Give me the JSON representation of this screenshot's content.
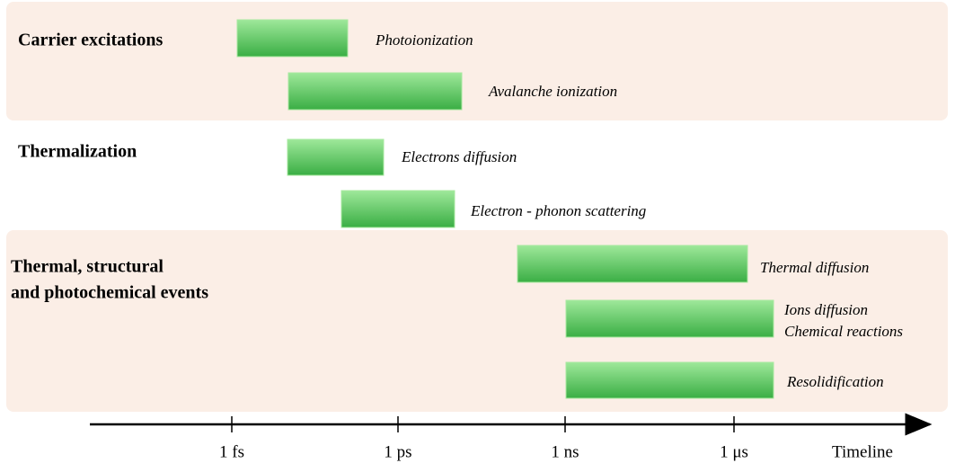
{
  "groups": [
    {
      "label_lines": [
        "Carrier excitations"
      ]
    },
    {
      "label_lines": [
        "Thermalization"
      ]
    },
    {
      "label_lines": [
        "Thermal, structural",
        "and photochemical events"
      ]
    }
  ],
  "processes": [
    {
      "label_lines": [
        "Photoionization"
      ]
    },
    {
      "label_lines": [
        "Avalanche ionization"
      ]
    },
    {
      "label_lines": [
        "Electrons diffusion"
      ]
    },
    {
      "label_lines": [
        "Electron - phonon scattering"
      ]
    },
    {
      "label_lines": [
        "Thermal diffusion"
      ]
    },
    {
      "label_lines": [
        "Ions diffusion",
        "Chemical reactions"
      ]
    },
    {
      "label_lines": [
        "Resolidification"
      ]
    }
  ],
  "axis": {
    "ticks": [
      "1 fs",
      "1 ps",
      "1 ns",
      "1 μs"
    ],
    "title": "Timeline"
  }
}
